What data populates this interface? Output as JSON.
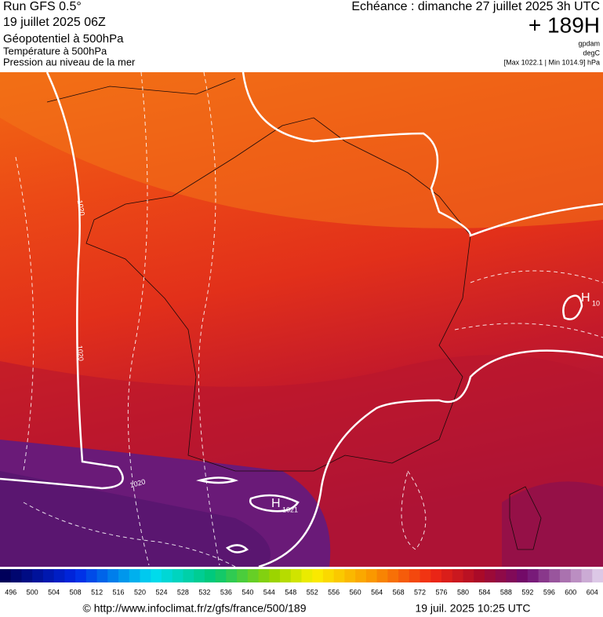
{
  "header": {
    "run": "Run GFS 0.5°",
    "date": "19 juillet 2025 06Z",
    "field1": "Géopotentiel à 500hPa",
    "field2": "Température à 500hPa",
    "field3": "Pression au niveau de la mer",
    "echeance": "Echéance : dimanche 27 juillet 2025 3h UTC",
    "hours": "+ 189H",
    "unit1": "gpdam",
    "unit2": "degC",
    "pressure_range": "[Max 1022.1 | Min 1014.9] hPa"
  },
  "map": {
    "labels": [
      "1020",
      "1020",
      "1020",
      "H",
      "1021",
      "H",
      "10"
    ]
  },
  "colorbar": {
    "labels": [
      496,
      500,
      504,
      508,
      512,
      516,
      520,
      524,
      528,
      532,
      536,
      540,
      544,
      548,
      552,
      556,
      560,
      564,
      568,
      572,
      576,
      580,
      584,
      588,
      592,
      596,
      600,
      604
    ]
  },
  "footer": {
    "url": "© http://www.infoclimat.fr/z/gfs/france/500/189",
    "timestamp": "19 juil. 2025 10:25 UTC"
  }
}
